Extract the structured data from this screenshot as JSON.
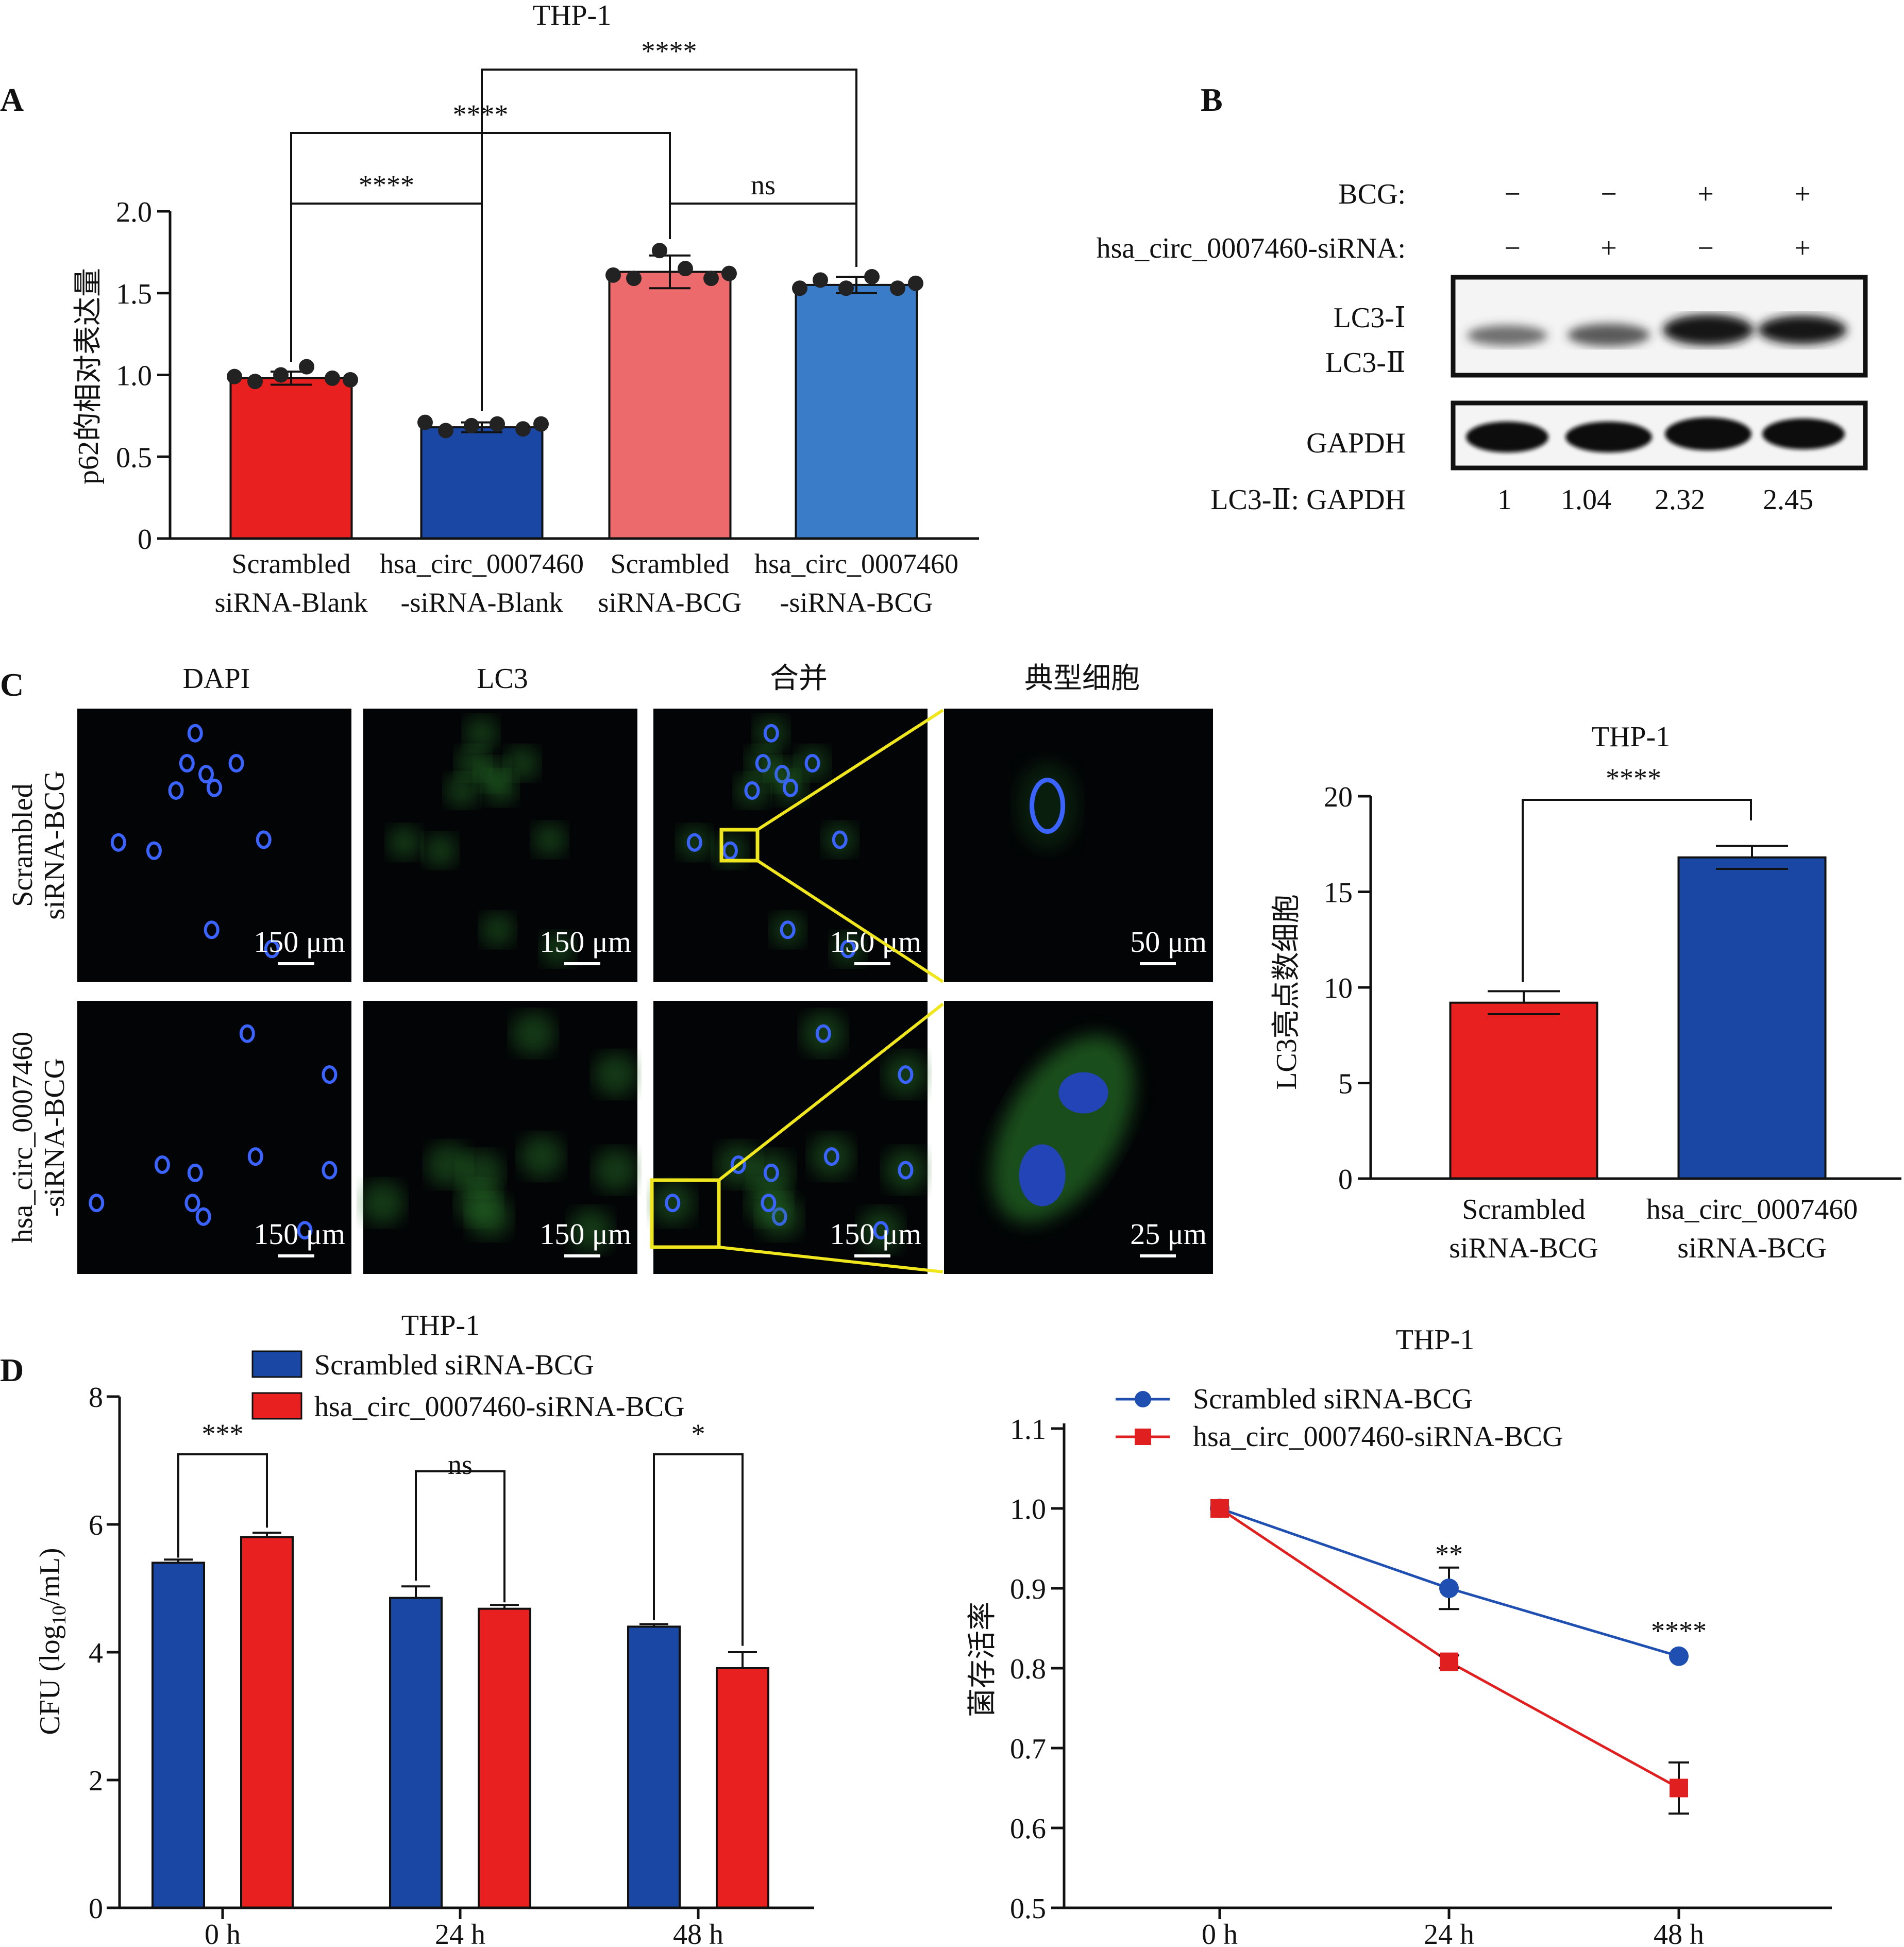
{
  "panelA": {
    "label": "A",
    "title": "THP-1",
    "ylabel": "p62的相对表达量",
    "yticks": [
      "0",
      "0.5",
      "1.0",
      "1.5",
      "2.0"
    ],
    "categories": [
      [
        "Scrambled",
        "siRNA-Blank"
      ],
      [
        "hsa_circ_0007460",
        "-siRNA-Blank"
      ],
      [
        "Scrambled",
        "siRNA-BCG"
      ],
      [
        "hsa_circ_0007460",
        "-siRNA-BCG"
      ]
    ],
    "colors": [
      "#e8201f",
      "#1a47a3",
      "#ec6a6b",
      "#3a7cc8"
    ],
    "significance": [
      {
        "label": "****",
        "from": 0,
        "to": 1
      },
      {
        "label": "ns",
        "from": 2,
        "to": 3
      },
      {
        "label": "****",
        "from": 0,
        "to": 2
      },
      {
        "label": "****",
        "from": 1,
        "to": 3
      }
    ]
  },
  "panelB": {
    "label": "B",
    "rows": [
      {
        "label": "BCG:",
        "values": [
          "−",
          "−",
          "+",
          "+"
        ]
      },
      {
        "label": "hsa_circ_0007460-siRNA:",
        "values": [
          "−",
          "+",
          "−",
          "+"
        ]
      }
    ],
    "blot_labels": [
      "LC3-Ⅰ",
      "LC3-Ⅱ",
      "GAPDH"
    ],
    "ratio_label": "LC3-Ⅱ: GAPDH",
    "ratios": [
      "1",
      "1.04",
      "2.32",
      "2.45"
    ]
  },
  "panelC": {
    "label": "C",
    "columns": [
      "DAPI",
      "LC3",
      "合并",
      "典型细胞"
    ],
    "rows": [
      {
        "line1": "Scrambled",
        "line2": "siRNA-BCG",
        "scales": [
          "150 μm",
          "150 μm",
          "150 μm",
          "50 μm"
        ]
      },
      {
        "line1": "hsa_circ_0007460",
        "line2": "-siRNA-BCG",
        "scales": [
          "150 μm",
          "150 μm",
          "150 μm",
          "25 μm"
        ]
      }
    ],
    "bar_title": "THP-1",
    "bar_ylabel": "LC3亮点数细胞",
    "bar_yticks": [
      "0",
      "5",
      "10",
      "15",
      "20"
    ],
    "bar_categories": [
      [
        "Scrambled",
        "siRNA-BCG"
      ],
      [
        "hsa_circ_0007460",
        "siRNA-BCG"
      ]
    ],
    "bar_sig": "****"
  },
  "panelD": {
    "label": "D",
    "bar_title": "THP-1",
    "bar_ylabel": "CFU (log10/mL)",
    "bar_yticks": [
      "0",
      "2",
      "4",
      "6",
      "8"
    ],
    "groups": [
      "0 h",
      "24 h",
      "48 h"
    ],
    "legend": [
      "Scrambled siRNA-BCG",
      "hsa_circ_0007460-siRNA-BCG"
    ],
    "bar_sig": [
      "***",
      "ns",
      "*"
    ],
    "line_title": "THP-1",
    "line_ylabel": "菌存活率",
    "line_yticks": [
      "0.5",
      "0.6",
      "0.7",
      "0.8",
      "0.9",
      "1.0",
      "1.1"
    ],
    "line_sig": [
      "**",
      "****"
    ]
  },
  "colors": {
    "blue": "#1a47a3",
    "red": "#e8201f",
    "lineBlue": "#1f4fb0",
    "lineRed": "#e02020",
    "blotDark": "#111111"
  },
  "chart_data": [
    {
      "type": "bar",
      "title": "THP-1",
      "xlabel": "",
      "ylabel": "p62的相对表达量",
      "ylim": [
        0,
        2.0
      ],
      "categories": [
        "Scrambled siRNA-Blank",
        "hsa_circ_0007460-siRNA-Blank",
        "Scrambled siRNA-BCG",
        "hsa_circ_0007460-siRNA-BCG"
      ],
      "values": [
        0.98,
        0.68,
        1.63,
        1.55
      ],
      "errors": [
        0.04,
        0.03,
        0.1,
        0.05
      ],
      "points": [
        [
          0.99,
          0.96,
          1.0,
          1.05,
          0.98,
          0.97
        ],
        [
          0.71,
          0.66,
          0.69,
          0.7,
          0.67,
          0.7
        ],
        [
          1.61,
          1.59,
          1.76,
          1.65,
          1.59,
          1.62
        ],
        [
          1.53,
          1.58,
          1.53,
          1.6,
          1.53,
          1.56
        ]
      ]
    },
    {
      "type": "bar",
      "title": "THP-1",
      "xlabel": "",
      "ylabel": "LC3亮点数细胞",
      "ylim": [
        0,
        20
      ],
      "categories": [
        "Scrambled siRNA-BCG",
        "hsa_circ_0007460 siRNA-BCG"
      ],
      "values": [
        9.2,
        16.8
      ],
      "errors": [
        0.6,
        0.6
      ]
    },
    {
      "type": "bar",
      "title": "THP-1",
      "xlabel": "",
      "ylabel": "CFU (log10/mL)",
      "ylim": [
        0,
        8
      ],
      "categories": [
        "0 h",
        "24 h",
        "48 h"
      ],
      "series": [
        {
          "name": "Scrambled siRNA-BCG",
          "values": [
            5.4,
            4.85,
            4.4
          ],
          "errors": [
            0.05,
            0.18,
            0.04
          ]
        },
        {
          "name": "hsa_circ_0007460-siRNA-BCG",
          "values": [
            5.8,
            4.68,
            3.75
          ],
          "errors": [
            0.07,
            0.06,
            0.25
          ]
        }
      ]
    },
    {
      "type": "line",
      "title": "THP-1",
      "xlabel": "",
      "ylabel": "菌存活率",
      "ylim": [
        0.5,
        1.1
      ],
      "x": [
        "0 h",
        "24 h",
        "48 h"
      ],
      "series": [
        {
          "name": "Scrambled siRNA-BCG",
          "values": [
            1.0,
            0.9,
            0.815
          ],
          "errors": [
            0.005,
            0.026,
            0.004
          ]
        },
        {
          "name": "hsa_circ_0007460-siRNA-BCG",
          "values": [
            1.0,
            0.808,
            0.65
          ],
          "errors": [
            0.005,
            0.008,
            0.032
          ]
        }
      ]
    }
  ]
}
